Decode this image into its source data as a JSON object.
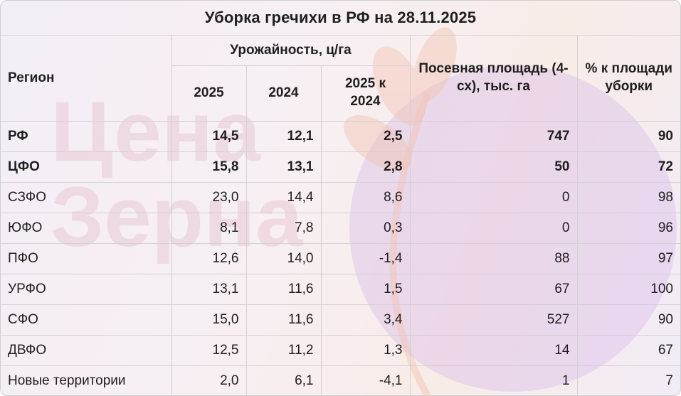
{
  "title": "Уборка гречихи в РФ на 28.11.2025",
  "watermark": {
    "text_line1": "Цена",
    "text_line2": "Зерна"
  },
  "header": {
    "region": "Регион",
    "yield_group": "Урожайность, ц/га",
    "y2025": "2025",
    "y2024": "2024",
    "diff": "2025 к 2024",
    "area": "Посевная площадь (4-сх), тыс. га",
    "pct": "% к площади уборки"
  },
  "rows": [
    {
      "region": "РФ",
      "y2025": "14,5",
      "y2024": "12,1",
      "diff": "2,5",
      "area": "747",
      "pct": "90",
      "bold": true
    },
    {
      "region": "ЦФО",
      "y2025": "15,8",
      "y2024": "13,1",
      "diff": "2,8",
      "area": "50",
      "pct": "72",
      "bold": true
    },
    {
      "region": "СЗФО",
      "y2025": "23,0",
      "y2024": "14,4",
      "diff": "8,6",
      "area": "0",
      "pct": "98",
      "bold": false
    },
    {
      "region": "ЮФО",
      "y2025": "8,1",
      "y2024": "7,8",
      "diff": "0,3",
      "area": "0",
      "pct": "96",
      "bold": false
    },
    {
      "region": "ПФО",
      "y2025": "12,6",
      "y2024": "14,0",
      "diff": "-1,4",
      "area": "88",
      "pct": "97",
      "bold": false
    },
    {
      "region": "УРФО",
      "y2025": "13,1",
      "y2024": "11,6",
      "diff": "1,5",
      "area": "67",
      "pct": "100",
      "bold": false
    },
    {
      "region": "СФО",
      "y2025": "15,0",
      "y2024": "11,6",
      "diff": "3,4",
      "area": "527",
      "pct": "90",
      "bold": false
    },
    {
      "region": "ДВФО",
      "y2025": "12,5",
      "y2024": "11,2",
      "diff": "1,3",
      "area": "14",
      "pct": "67",
      "bold": false
    },
    {
      "region": "Новые территории",
      "y2025": "2,0",
      "y2024": "6,1",
      "diff": "-4,1",
      "area": "1",
      "pct": "7",
      "bold": false
    }
  ]
}
